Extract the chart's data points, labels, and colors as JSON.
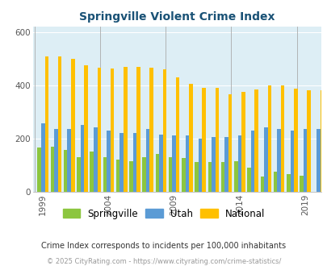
{
  "title": "Springville Violent Crime Index",
  "title_color": "#1a5276",
  "years": [
    1999,
    2000,
    2001,
    2002,
    2003,
    2004,
    2005,
    2006,
    2007,
    2008,
    2009,
    2010,
    2011,
    2012,
    2013,
    2014,
    2015,
    2016,
    2017,
    2018,
    2019,
    2020
  ],
  "springville": [
    165,
    170,
    155,
    130,
    150,
    130,
    120,
    115,
    130,
    140,
    130,
    125,
    110,
    110,
    110,
    115,
    90,
    55,
    75,
    65,
    60,
    0
  ],
  "utah": [
    255,
    235,
    235,
    250,
    240,
    230,
    220,
    220,
    235,
    215,
    212,
    210,
    200,
    205,
    205,
    212,
    228,
    240,
    235,
    230,
    235,
    235
  ],
  "national": [
    508,
    508,
    500,
    475,
    465,
    463,
    470,
    470,
    465,
    460,
    430,
    405,
    390,
    390,
    365,
    375,
    383,
    400,
    398,
    386,
    380,
    380
  ],
  "springville_color": "#8cc63f",
  "utah_color": "#5b9bd5",
  "national_color": "#ffc000",
  "bg_color": "#ddeef5",
  "ylim": [
    0,
    620
  ],
  "yticks": [
    0,
    200,
    400,
    600
  ],
  "legend_labels": [
    "Springville",
    "Utah",
    "National"
  ],
  "footnote1": "Crime Index corresponds to incidents per 100,000 inhabitants",
  "footnote2": "© 2025 CityRating.com - https://www.cityrating.com/crime-statistics/",
  "bar_width": 0.28,
  "xtick_years": [
    1999,
    2004,
    2009,
    2014,
    2019
  ]
}
